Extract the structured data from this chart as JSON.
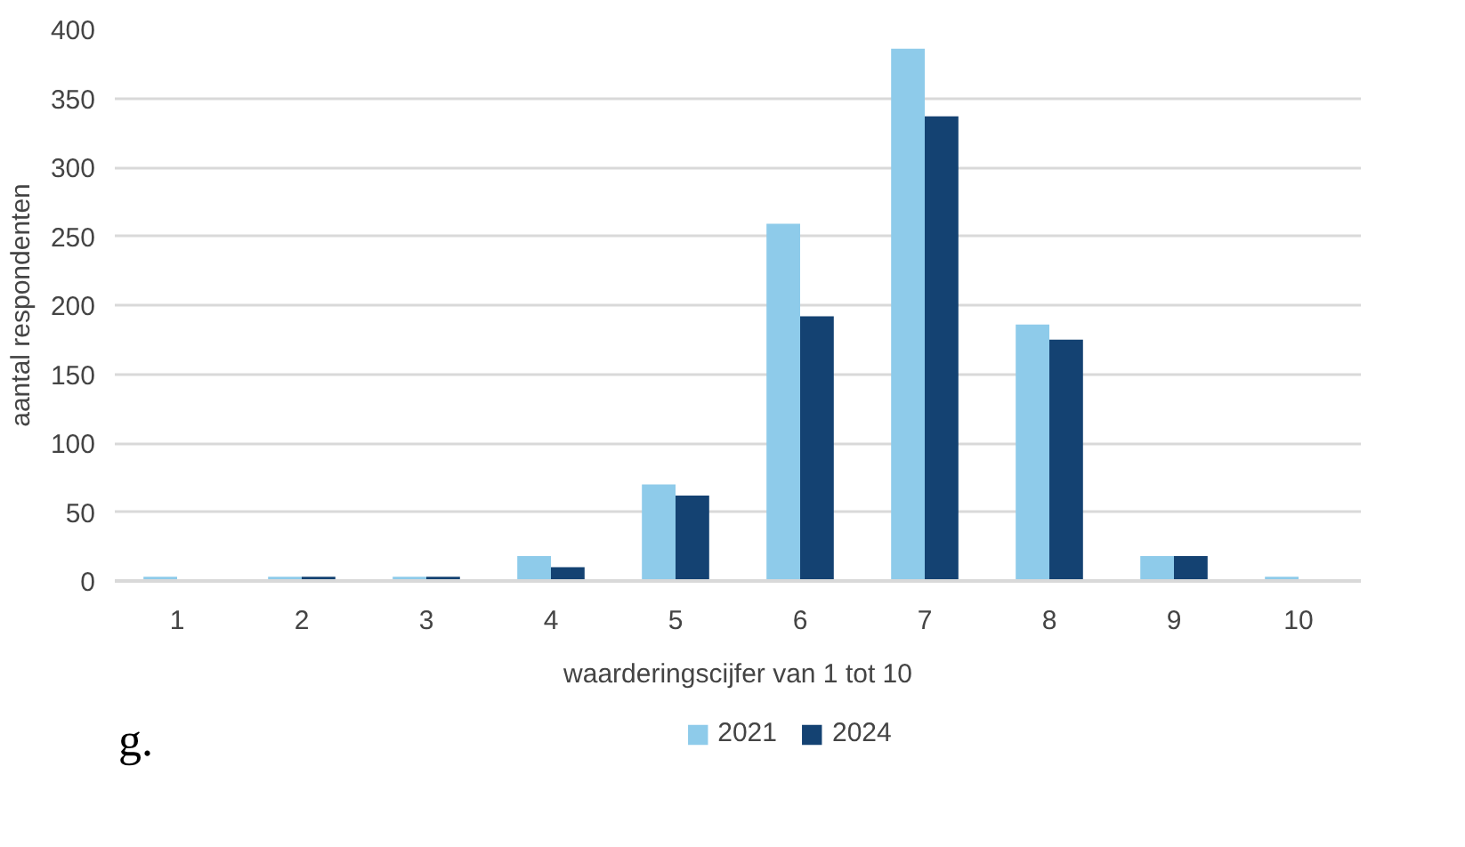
{
  "chart_data": {
    "type": "bar",
    "categories": [
      "1",
      "2",
      "3",
      "4",
      "5",
      "6",
      "7",
      "8",
      "9",
      "10"
    ],
    "series": [
      {
        "name": "2021",
        "color": "#8ecbea",
        "values": [
          3,
          3,
          3,
          18,
          70,
          259,
          386,
          186,
          18,
          3
        ]
      },
      {
        "name": "2024",
        "color": "#144272",
        "values": [
          0,
          3,
          3,
          10,
          62,
          192,
          337,
          175,
          18,
          0
        ]
      }
    ],
    "xlabel": "waarderingscijfer van 1 tot 10",
    "ylabel": "aantal respondenten",
    "ylim": [
      0,
      400
    ],
    "yticks": [
      0,
      50,
      100,
      150,
      200,
      250,
      300,
      350,
      400
    ],
    "grid": "y",
    "legend": "bottom",
    "annotations": [
      "g."
    ]
  }
}
